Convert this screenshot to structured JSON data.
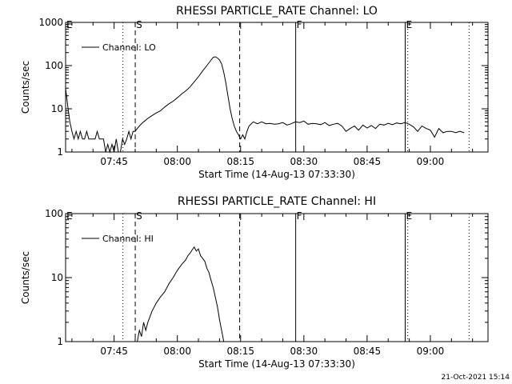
{
  "footer": {
    "timestamp": "21-Oct-2021 15:14"
  },
  "chart_data": [
    {
      "type": "line",
      "title": "RHESSI PARTICLE_RATE Channel: LO",
      "xlabel": "Start Time (14-Aug-13 07:33:30)",
      "ylabel": "Counts/sec",
      "y_scale": "log",
      "ylim": [
        1,
        1000
      ],
      "xlim": [
        "07:33:30",
        "09:13:40"
      ],
      "x_tick_labels": [
        "07:45",
        "08:00",
        "08:15",
        "08:30",
        "08:45",
        "09:00"
      ],
      "y_tick_labels": [
        "1",
        "10",
        "100",
        "1000"
      ],
      "legend": {
        "placement": "top-left",
        "entries": [
          "Channel: LO"
        ]
      },
      "markers": [
        {
          "label": "E",
          "time": "07:33:30",
          "style": "none"
        },
        {
          "label": "",
          "time": "07:47:06",
          "style": "dotted"
        },
        {
          "label": "S",
          "time": "07:50:01",
          "style": "dashed"
        },
        {
          "label": "",
          "time": "08:14:47",
          "style": "dashed"
        },
        {
          "label": "F",
          "time": "08:28:04",
          "style": "solid"
        },
        {
          "label": "E",
          "time": "08:54:02",
          "style": "solid"
        },
        {
          "label": "",
          "time": "08:54:38",
          "style": "dotted"
        },
        {
          "label": "",
          "time": "09:09:11",
          "style": "dotted"
        }
      ],
      "series": [
        {
          "name": "Channel: LO",
          "x": [
            "07:33:30",
            "07:34:00",
            "07:34:30",
            "07:35:00",
            "07:35:30",
            "07:36:00",
            "07:36:30",
            "07:37:00",
            "07:37:30",
            "07:38:00",
            "07:38:30",
            "07:39:00",
            "07:39:30",
            "07:40:00",
            "07:40:30",
            "07:41:00",
            "07:41:30",
            "07:42:00",
            "07:42:30",
            "07:43:00",
            "07:43:30",
            "07:44:00",
            "07:44:30",
            "07:45:00",
            "07:45:30",
            "07:46:00",
            "07:46:30",
            "07:47:00",
            "07:47:30",
            "07:48:00",
            "07:48:30",
            "07:49:00",
            "07:49:30",
            "07:50:00",
            "07:50:30",
            "07:51:00",
            "07:52:00",
            "07:53:00",
            "07:54:00",
            "07:55:00",
            "07:56:00",
            "07:57:00",
            "07:58:00",
            "07:59:00",
            "08:00:00",
            "08:01:00",
            "08:02:00",
            "08:03:00",
            "08:04:00",
            "08:05:00",
            "08:06:00",
            "08:07:00",
            "08:08:00",
            "08:08:30",
            "08:09:00",
            "08:09:30",
            "08:10:00",
            "08:10:30",
            "08:11:00",
            "08:11:30",
            "08:12:00",
            "08:12:30",
            "08:13:00",
            "08:13:30",
            "08:14:00",
            "08:14:30",
            "08:15:00",
            "08:15:30",
            "08:16:00",
            "08:16:30",
            "08:17:00",
            "08:18:00",
            "08:19:00",
            "08:20:00",
            "08:21:00",
            "08:22:00",
            "08:23:00",
            "08:24:00",
            "08:25:00",
            "08:26:00",
            "08:27:00",
            "08:28:00",
            "08:29:00",
            "08:30:00",
            "08:31:00",
            "08:32:00",
            "08:33:00",
            "08:34:00",
            "08:35:00",
            "08:36:00",
            "08:37:00",
            "08:38:00",
            "08:39:00",
            "08:40:00",
            "08:41:00",
            "08:42:00",
            "08:43:00",
            "08:44:00",
            "08:45:00",
            "08:46:00",
            "08:47:00",
            "08:48:00",
            "08:49:00",
            "08:50:00",
            "08:51:00",
            "08:52:00",
            "08:53:00",
            "08:54:00",
            "08:55:00",
            "08:56:00",
            "08:57:00",
            "08:58:00",
            "08:59:00",
            "09:00:00",
            "09:01:00",
            "09:02:00",
            "09:03:00",
            "09:04:00",
            "09:05:00",
            "09:06:00",
            "09:07:00",
            "09:08:00"
          ],
          "y": [
            30,
            12,
            5,
            3,
            2,
            3,
            2,
            3,
            2,
            2,
            3,
            2,
            2,
            2,
            2,
            3,
            2,
            2,
            2,
            1,
            1.5,
            1,
            1.5,
            1,
            2,
            1,
            1,
            2,
            1.5,
            2,
            3,
            2,
            3,
            3,
            3.5,
            4,
            5,
            6,
            7,
            8,
            9,
            11,
            13,
            15,
            18,
            22,
            26,
            32,
            42,
            55,
            75,
            100,
            135,
            155,
            160,
            150,
            135,
            110,
            70,
            40,
            20,
            10,
            6,
            4,
            3,
            2.5,
            2,
            2.5,
            2,
            3,
            4,
            5,
            4.5,
            5,
            4.5,
            4.6,
            4.4,
            4.5,
            4.8,
            4.2,
            4.5,
            5,
            4.8,
            5.2,
            4.4,
            4.6,
            4.5,
            4.3,
            4.8,
            4.1,
            4.4,
            4.6,
            4,
            3,
            3.5,
            4,
            3.2,
            4.2,
            3.6,
            4.1,
            3.5,
            4.4,
            4.2,
            4.6,
            4.3,
            4.7,
            4.5,
            4.8,
            4.4,
            3.8,
            3,
            4,
            3.5,
            3.2,
            2.2,
            3.5,
            2.8,
            3,
            3,
            2.8,
            3,
            2.8
          ]
        }
      ]
    },
    {
      "type": "line",
      "title": "RHESSI PARTICLE_RATE Channel: HI",
      "xlabel": "Start Time (14-Aug-13 07:33:30)",
      "ylabel": "Counts/sec",
      "y_scale": "log",
      "ylim": [
        1,
        100
      ],
      "xlim": [
        "07:33:30",
        "09:13:40"
      ],
      "x_tick_labels": [
        "07:45",
        "08:00",
        "08:15",
        "08:30",
        "08:45",
        "09:00"
      ],
      "y_tick_labels": [
        "1",
        "10",
        "100"
      ],
      "legend": {
        "placement": "top-left",
        "entries": [
          "Channel: HI"
        ]
      },
      "markers": [
        {
          "label": "E",
          "time": "07:33:30",
          "style": "none"
        },
        {
          "label": "",
          "time": "07:47:06",
          "style": "dotted"
        },
        {
          "label": "S",
          "time": "07:50:01",
          "style": "dashed"
        },
        {
          "label": "",
          "time": "08:14:47",
          "style": "dashed"
        },
        {
          "label": "F",
          "time": "08:28:04",
          "style": "solid"
        },
        {
          "label": "E",
          "time": "08:54:02",
          "style": "solid"
        },
        {
          "label": "",
          "time": "08:54:38",
          "style": "dotted"
        },
        {
          "label": "",
          "time": "09:09:11",
          "style": "dotted"
        }
      ],
      "series": [
        {
          "name": "Channel: HI",
          "x": [
            "07:50:30",
            "07:51:00",
            "07:51:30",
            "07:52:00",
            "07:52:30",
            "07:53:00",
            "07:54:00",
            "07:55:00",
            "07:56:00",
            "07:57:00",
            "07:58:00",
            "07:59:00",
            "08:00:00",
            "08:01:00",
            "08:02:00",
            "08:02:30",
            "08:03:00",
            "08:03:30",
            "08:04:00",
            "08:04:30",
            "08:05:00",
            "08:05:30",
            "08:06:00",
            "08:06:30",
            "08:07:00",
            "08:07:30",
            "08:08:00",
            "08:08:30",
            "08:09:00",
            "08:09:30",
            "08:10:00",
            "08:10:30",
            "08:11:00"
          ],
          "y": [
            1,
            1.5,
            1.2,
            2,
            1.5,
            2,
            3,
            4,
            5,
            6,
            8,
            10,
            13,
            16,
            19,
            22,
            24,
            27,
            30,
            26,
            28,
            22,
            20,
            18,
            14,
            12,
            9,
            7,
            5,
            3.5,
            2.2,
            1.5,
            1
          ]
        }
      ]
    }
  ]
}
